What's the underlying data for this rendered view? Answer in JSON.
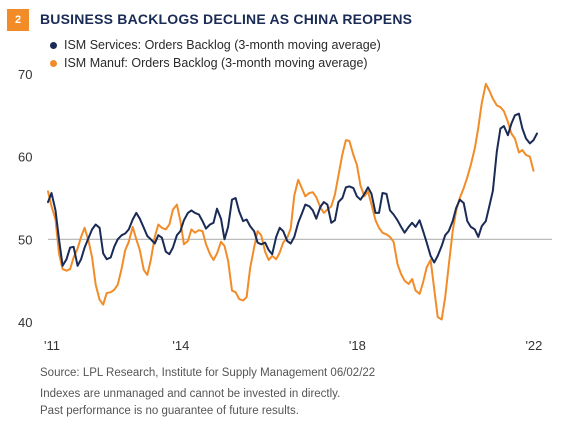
{
  "header": {
    "badge": "2",
    "title": "BUSINESS BACKLOGS DECLINE AS CHINA REOPENS"
  },
  "colors": {
    "services": "#1a2b56",
    "manufacturing": "#f28c28",
    "reference_line": "#b3b3b3",
    "badge": "#f28c28"
  },
  "chart_data": {
    "type": "line",
    "title": "BUSINESS BACKLOGS DECLINE AS CHINA REOPENS",
    "xlabel": "",
    "ylabel": "",
    "xlim": [
      2011.0,
      2022.42
    ],
    "ylim": [
      40,
      70
    ],
    "yticks": [
      40,
      50,
      60,
      70
    ],
    "xticks": [
      {
        "value": 2011.0,
        "label": "'11"
      },
      {
        "value": 2014.0,
        "label": "'14"
      },
      {
        "value": 2018.0,
        "label": "'18"
      },
      {
        "value": 2022.0,
        "label": "'22"
      }
    ],
    "reference_line": 50,
    "legend_position": "top-left",
    "grid": false,
    "series": [
      {
        "name": "ISM Services: Orders Backlog (3-month moving average)",
        "color": "#1a2b56",
        "points": [
          [
            2011.0,
            54.5
          ],
          [
            2011.08,
            55.6
          ],
          [
            2011.17,
            53.5
          ],
          [
            2011.25,
            50.0
          ],
          [
            2011.33,
            46.8
          ],
          [
            2011.42,
            47.6
          ],
          [
            2011.5,
            49.0
          ],
          [
            2011.58,
            49.1
          ],
          [
            2011.67,
            46.8
          ],
          [
            2011.75,
            47.6
          ],
          [
            2011.83,
            49.0
          ],
          [
            2011.92,
            50.2
          ],
          [
            2012.0,
            51.2
          ],
          [
            2012.08,
            51.8
          ],
          [
            2012.17,
            51.4
          ],
          [
            2012.25,
            48.3
          ],
          [
            2012.33,
            47.6
          ],
          [
            2012.42,
            47.8
          ],
          [
            2012.5,
            49.1
          ],
          [
            2012.58,
            50.0
          ],
          [
            2012.67,
            50.5
          ],
          [
            2012.75,
            50.7
          ],
          [
            2012.83,
            51.2
          ],
          [
            2012.92,
            52.4
          ],
          [
            2013.0,
            53.2
          ],
          [
            2013.08,
            52.5
          ],
          [
            2013.17,
            51.4
          ],
          [
            2013.25,
            50.4
          ],
          [
            2013.33,
            50.0
          ],
          [
            2013.42,
            49.5
          ],
          [
            2013.5,
            50.5
          ],
          [
            2013.58,
            50.2
          ],
          [
            2013.67,
            48.5
          ],
          [
            2013.75,
            48.2
          ],
          [
            2013.83,
            49.0
          ],
          [
            2013.92,
            50.5
          ],
          [
            2014.0,
            51.0
          ],
          [
            2014.08,
            52.3
          ],
          [
            2014.17,
            53.2
          ],
          [
            2014.25,
            53.5
          ],
          [
            2014.33,
            53.2
          ],
          [
            2014.42,
            53.0
          ],
          [
            2014.5,
            52.2
          ],
          [
            2014.58,
            51.3
          ],
          [
            2014.67,
            51.8
          ],
          [
            2014.75,
            52.0
          ],
          [
            2014.83,
            53.7
          ],
          [
            2014.92,
            52.5
          ],
          [
            2015.0,
            50.0
          ],
          [
            2015.08,
            51.5
          ],
          [
            2015.17,
            54.8
          ],
          [
            2015.25,
            55.0
          ],
          [
            2015.33,
            53.4
          ],
          [
            2015.42,
            52.2
          ],
          [
            2015.5,
            52.4
          ],
          [
            2015.58,
            51.6
          ],
          [
            2015.67,
            51.0
          ],
          [
            2015.75,
            49.6
          ],
          [
            2015.83,
            49.4
          ],
          [
            2015.92,
            49.6
          ],
          [
            2016.0,
            48.7
          ],
          [
            2016.08,
            48.2
          ],
          [
            2016.17,
            50.3
          ],
          [
            2016.25,
            51.4
          ],
          [
            2016.33,
            51.0
          ],
          [
            2016.42,
            49.8
          ],
          [
            2016.5,
            49.5
          ],
          [
            2016.58,
            50.3
          ],
          [
            2016.67,
            52.0
          ],
          [
            2016.75,
            53.1
          ],
          [
            2016.83,
            54.2
          ],
          [
            2016.92,
            54.0
          ],
          [
            2017.0,
            53.5
          ],
          [
            2017.08,
            52.5
          ],
          [
            2017.17,
            53.9
          ],
          [
            2017.25,
            54.5
          ],
          [
            2017.33,
            54.2
          ],
          [
            2017.42,
            52.0
          ],
          [
            2017.5,
            52.3
          ],
          [
            2017.58,
            54.5
          ],
          [
            2017.67,
            55.0
          ],
          [
            2017.75,
            56.3
          ],
          [
            2017.83,
            56.4
          ],
          [
            2017.92,
            56.2
          ],
          [
            2018.0,
            55.2
          ],
          [
            2018.08,
            54.8
          ],
          [
            2018.17,
            55.5
          ],
          [
            2018.25,
            56.3
          ],
          [
            2018.33,
            55.5
          ],
          [
            2018.42,
            53.2
          ],
          [
            2018.5,
            53.2
          ],
          [
            2018.58,
            55.6
          ],
          [
            2018.67,
            55.5
          ],
          [
            2018.75,
            53.5
          ],
          [
            2018.83,
            53.0
          ],
          [
            2018.92,
            52.3
          ],
          [
            2019.0,
            51.5
          ],
          [
            2019.08,
            50.8
          ],
          [
            2019.17,
            51.5
          ],
          [
            2019.25,
            52.0
          ],
          [
            2019.33,
            51.5
          ],
          [
            2019.42,
            52.3
          ],
          [
            2019.5,
            51.0
          ],
          [
            2019.58,
            49.6
          ],
          [
            2019.67,
            48.0
          ],
          [
            2019.75,
            47.2
          ],
          [
            2019.83,
            48.0
          ],
          [
            2019.92,
            49.2
          ],
          [
            2020.0,
            50.5
          ],
          [
            2020.08,
            51.0
          ],
          [
            2020.17,
            52.2
          ],
          [
            2020.25,
            53.8
          ],
          [
            2020.33,
            54.8
          ],
          [
            2020.42,
            54.4
          ],
          [
            2020.5,
            52.2
          ],
          [
            2020.58,
            51.5
          ],
          [
            2020.67,
            51.2
          ],
          [
            2020.75,
            50.3
          ],
          [
            2020.83,
            51.6
          ],
          [
            2020.92,
            52.2
          ],
          [
            2021.0,
            54.0
          ],
          [
            2021.08,
            55.9
          ],
          [
            2021.17,
            60.6
          ],
          [
            2021.25,
            63.4
          ],
          [
            2021.33,
            63.7
          ],
          [
            2021.42,
            62.6
          ],
          [
            2021.5,
            64.0
          ],
          [
            2021.58,
            65.0
          ],
          [
            2021.67,
            65.2
          ],
          [
            2021.75,
            63.4
          ],
          [
            2021.83,
            62.2
          ],
          [
            2021.92,
            61.6
          ],
          [
            2022.0,
            62.0
          ],
          [
            2022.08,
            62.8
          ]
        ]
      },
      {
        "name": "ISM Manuf: Orders Backlog (3-month moving average)",
        "color": "#f28c28",
        "points": [
          [
            2011.0,
            55.8
          ],
          [
            2011.08,
            54.0
          ],
          [
            2011.17,
            52.4
          ],
          [
            2011.25,
            48.3
          ],
          [
            2011.33,
            46.4
          ],
          [
            2011.42,
            46.2
          ],
          [
            2011.5,
            46.4
          ],
          [
            2011.58,
            47.8
          ],
          [
            2011.67,
            48.9
          ],
          [
            2011.75,
            50.3
          ],
          [
            2011.83,
            51.4
          ],
          [
            2011.92,
            49.8
          ],
          [
            2012.0,
            47.8
          ],
          [
            2012.08,
            44.5
          ],
          [
            2012.17,
            42.7
          ],
          [
            2012.25,
            42.1
          ],
          [
            2012.33,
            43.5
          ],
          [
            2012.42,
            43.6
          ],
          [
            2012.5,
            43.9
          ],
          [
            2012.58,
            44.5
          ],
          [
            2012.67,
            46.5
          ],
          [
            2012.75,
            48.7
          ],
          [
            2012.83,
            49.7
          ],
          [
            2012.92,
            51.5
          ],
          [
            2013.0,
            50.0
          ],
          [
            2013.08,
            48.7
          ],
          [
            2013.17,
            46.3
          ],
          [
            2013.25,
            45.7
          ],
          [
            2013.33,
            47.5
          ],
          [
            2013.42,
            50.3
          ],
          [
            2013.5,
            51.8
          ],
          [
            2013.58,
            51.4
          ],
          [
            2013.67,
            51.2
          ],
          [
            2013.75,
            51.8
          ],
          [
            2013.83,
            53.6
          ],
          [
            2013.92,
            54.2
          ],
          [
            2014.0,
            52.2
          ],
          [
            2014.08,
            49.4
          ],
          [
            2014.17,
            49.8
          ],
          [
            2014.25,
            51.2
          ],
          [
            2014.33,
            50.8
          ],
          [
            2014.42,
            51.1
          ],
          [
            2014.5,
            51.0
          ],
          [
            2014.58,
            49.4
          ],
          [
            2014.67,
            48.2
          ],
          [
            2014.75,
            47.5
          ],
          [
            2014.83,
            48.3
          ],
          [
            2014.92,
            49.7
          ],
          [
            2015.0,
            49.2
          ],
          [
            2015.08,
            47.4
          ],
          [
            2015.17,
            43.8
          ],
          [
            2015.25,
            43.6
          ],
          [
            2015.33,
            42.8
          ],
          [
            2015.42,
            42.6
          ],
          [
            2015.5,
            43.0
          ],
          [
            2015.58,
            46.5
          ],
          [
            2015.67,
            49.0
          ],
          [
            2015.75,
            51.0
          ],
          [
            2015.83,
            50.5
          ],
          [
            2015.92,
            48.5
          ],
          [
            2016.0,
            47.5
          ],
          [
            2016.08,
            48.0
          ],
          [
            2016.17,
            47.6
          ],
          [
            2016.25,
            48.4
          ],
          [
            2016.33,
            49.6
          ],
          [
            2016.42,
            50.2
          ],
          [
            2016.5,
            51.3
          ],
          [
            2016.58,
            55.3
          ],
          [
            2016.67,
            57.2
          ],
          [
            2016.75,
            56.2
          ],
          [
            2016.83,
            55.2
          ],
          [
            2016.92,
            55.6
          ],
          [
            2017.0,
            55.7
          ],
          [
            2017.08,
            55.1
          ],
          [
            2017.17,
            53.9
          ],
          [
            2017.25,
            53.2
          ],
          [
            2017.33,
            53.6
          ],
          [
            2017.42,
            54.0
          ],
          [
            2017.5,
            55.4
          ],
          [
            2017.58,
            57.7
          ],
          [
            2017.67,
            60.3
          ],
          [
            2017.75,
            62.0
          ],
          [
            2017.83,
            61.9
          ],
          [
            2017.92,
            60.2
          ],
          [
            2018.0,
            59.0
          ],
          [
            2018.08,
            56.5
          ],
          [
            2018.17,
            55.2
          ],
          [
            2018.25,
            55.8
          ],
          [
            2018.33,
            54.2
          ],
          [
            2018.42,
            52.3
          ],
          [
            2018.5,
            51.4
          ],
          [
            2018.58,
            50.8
          ],
          [
            2018.67,
            50.6
          ],
          [
            2018.75,
            50.3
          ],
          [
            2018.83,
            49.7
          ],
          [
            2018.92,
            47.0
          ],
          [
            2019.0,
            45.8
          ],
          [
            2019.08,
            45.0
          ],
          [
            2019.17,
            44.6
          ],
          [
            2019.25,
            45.2
          ],
          [
            2019.33,
            43.8
          ],
          [
            2019.42,
            43.4
          ],
          [
            2019.5,
            44.8
          ],
          [
            2019.58,
            46.6
          ],
          [
            2019.67,
            47.5
          ],
          [
            2019.75,
            44.0
          ],
          [
            2019.83,
            40.6
          ],
          [
            2019.92,
            40.3
          ],
          [
            2020.0,
            43.0
          ],
          [
            2020.08,
            46.8
          ],
          [
            2020.17,
            51.0
          ],
          [
            2020.25,
            53.5
          ],
          [
            2020.33,
            55.0
          ],
          [
            2020.42,
            56.2
          ],
          [
            2020.5,
            57.5
          ],
          [
            2020.58,
            59.0
          ],
          [
            2020.67,
            61.0
          ],
          [
            2020.75,
            63.5
          ],
          [
            2020.83,
            66.5
          ],
          [
            2020.92,
            68.8
          ],
          [
            2021.0,
            68.0
          ],
          [
            2021.08,
            67.0
          ],
          [
            2021.17,
            66.2
          ],
          [
            2021.25,
            66.0
          ],
          [
            2021.33,
            65.5
          ],
          [
            2021.42,
            64.2
          ],
          [
            2021.5,
            62.8
          ],
          [
            2021.58,
            62.2
          ],
          [
            2021.67,
            60.5
          ],
          [
            2021.75,
            60.8
          ],
          [
            2021.83,
            60.2
          ],
          [
            2021.92,
            60.0
          ],
          [
            2022.0,
            58.3
          ]
        ]
      }
    ]
  },
  "footer": {
    "source": "Source: LPL Research, Institute for Supply Management  06/02/22",
    "disclaimer_1": "Indexes are unmanaged and cannot be invested in directly.",
    "disclaimer_2": "Past performance is no guarantee of future results."
  }
}
